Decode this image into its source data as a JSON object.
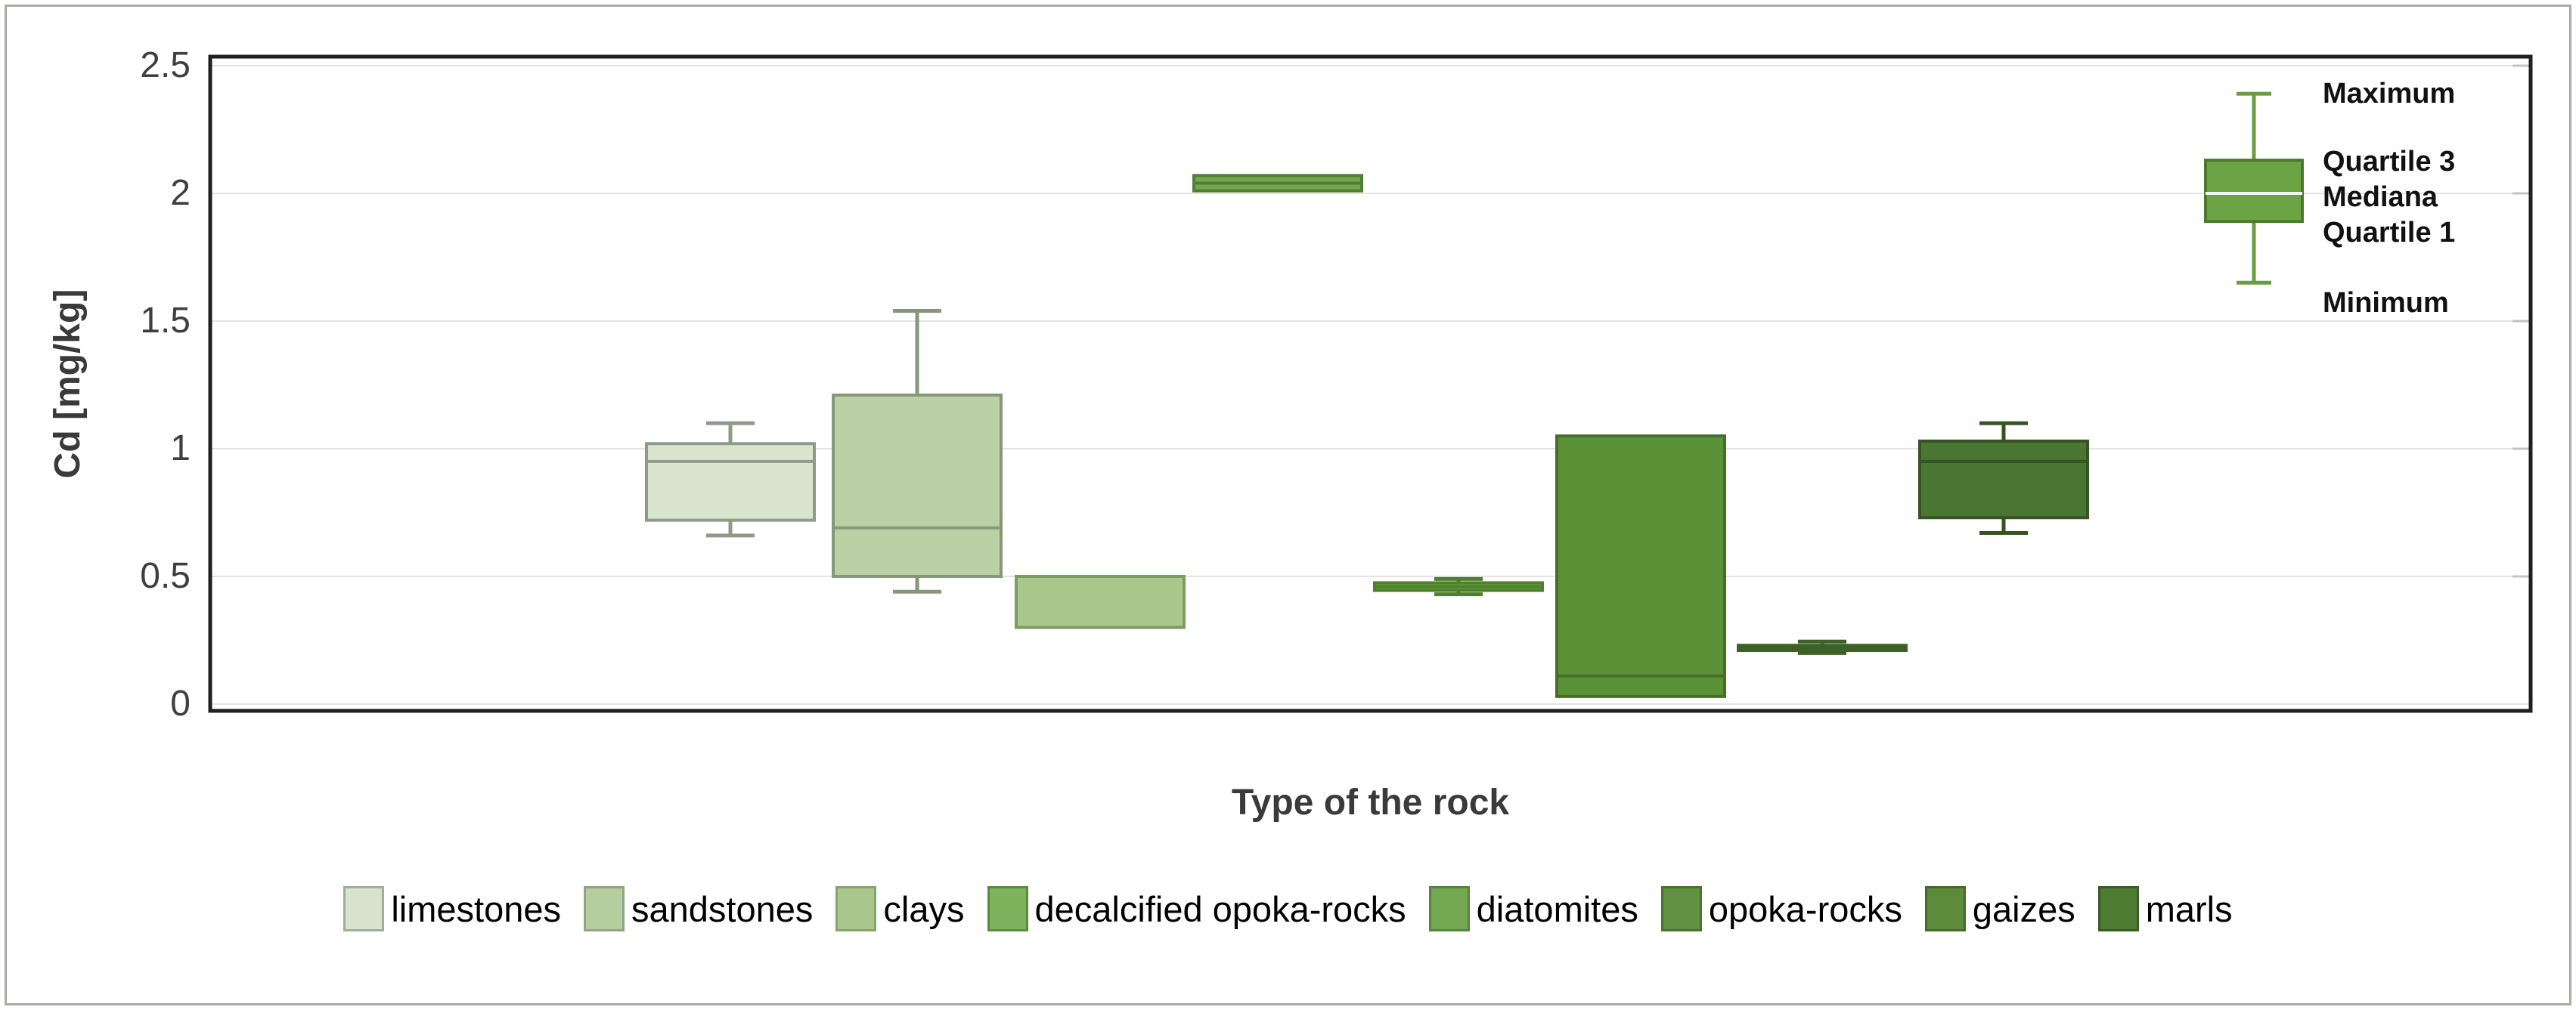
{
  "y_axis": {
    "title": "Cd [mg/kg]",
    "ticks": [
      {
        "label": "2.5",
        "value": 2.5
      },
      {
        "label": "2",
        "value": 2.0
      },
      {
        "label": "1.5",
        "value": 1.5
      },
      {
        "label": "1",
        "value": 1.0
      },
      {
        "label": "0.5",
        "value": 0.5
      },
      {
        "label": "0",
        "value": 0.0
      }
    ]
  },
  "x_axis": {
    "title": "Type of the rock"
  },
  "chart_data": {
    "type": "boxplot",
    "title": "",
    "xlabel": "Type of the rock",
    "ylabel": "Cd [mg/kg]",
    "ylim": [
      0,
      2.56
    ],
    "grid": "horizontal, every 0.5",
    "legend_position": "bottom",
    "categories": [
      "limestones",
      "sandstones",
      "clays",
      "decalcified opoka-rocks",
      "diatomites",
      "opoka-rocks",
      "gaizes",
      "marls"
    ],
    "series": [
      {
        "name": "limestones",
        "min": 0.66,
        "q1": 0.72,
        "median": 0.95,
        "q3": 1.02,
        "max": 1.1,
        "fill": "#d9e5ce",
        "stroke": "#8e9b88",
        "whisker": "#8e9b88",
        "median_color": "#8e9b88"
      },
      {
        "name": "sandstones",
        "min": 0.44,
        "q1": 0.5,
        "median": 0.69,
        "q3": 1.21,
        "max": 1.54,
        "fill": "#bbd1a5",
        "stroke": "#85997a",
        "whisker": "#85997a",
        "median_color": "#85997a"
      },
      {
        "name": "clays",
        "min": 0.3,
        "q1": 0.3,
        "median": 0.5,
        "q3": 0.5,
        "max": 0.5,
        "fill": "#a9c88c",
        "stroke": "#7c9c62",
        "whisker": "#7c9c62",
        "median_color": "#7c9c62"
      },
      {
        "name": "decalcified opoka-rocks",
        "min": 2.01,
        "q1": 2.01,
        "median": 2.04,
        "q3": 2.07,
        "max": 2.07,
        "fill": "#72a84e",
        "stroke": "#527e33",
        "whisker": "#527e33",
        "median_color": "#527e33"
      },
      {
        "name": "diatomites",
        "min": 0.43,
        "q1": 0.445,
        "median": 0.46,
        "q3": 0.475,
        "max": 0.49,
        "fill": "#67a33f",
        "stroke": "#4e802d",
        "whisker": "#4e802d",
        "median_color": "#4e802d"
      },
      {
        "name": "opoka-rocks",
        "min": 0.03,
        "q1": 0.03,
        "median": 0.11,
        "q3": 1.05,
        "max": 1.05,
        "fill": "#5c9237",
        "stroke": "#456f28",
        "whisker": "#456f28",
        "median_color": "#456f28"
      },
      {
        "name": "gaizes",
        "min": 0.2,
        "q1": 0.21,
        "median": 0.22,
        "q3": 0.23,
        "max": 0.245,
        "fill": "#507d31",
        "stroke": "#3d6126",
        "whisker": "#3d6126",
        "median_color": "#3d6126"
      },
      {
        "name": "marls",
        "min": 0.67,
        "q1": 0.73,
        "median": 0.95,
        "q3": 1.03,
        "max": 1.1,
        "fill": "#4b7532",
        "stroke": "#365421",
        "whisker": "#365421",
        "median_color": "#365421"
      }
    ],
    "example_boxplot": {
      "name": "legend example",
      "min": 1.65,
      "q1": 1.89,
      "median": 2.0,
      "q3": 2.13,
      "max": 2.39,
      "fill": "#6ca445",
      "stroke": "#4c7a2b",
      "whisker": "#6b9d3e",
      "median_color": "#f2f6ee",
      "labels": [
        {
          "text": "Maximum",
          "anchor_value": 2.39
        },
        {
          "text": "Quartile 3",
          "anchor_value": 2.125
        },
        {
          "text": "Mediana",
          "anchor_value": 1.985
        },
        {
          "text": "Quartile 1",
          "anchor_value": 1.845
        },
        {
          "text": "Minimum",
          "anchor_value": 1.571
        }
      ]
    }
  },
  "legend": {
    "items": [
      {
        "label": "limestones",
        "fill": "#d7e3cc",
        "border": "#a2ac9a"
      },
      {
        "label": "sandstones",
        "fill": "#b6cd9f",
        "border": "#92a484"
      },
      {
        "label": "clays",
        "fill": "#a9c78d",
        "border": "#87a46c"
      },
      {
        "label": "decalcified opoka-rocks",
        "fill": "#7eb25d",
        "border": "#5c8a3f"
      },
      {
        "label": "diatomites",
        "fill": "#73a750",
        "border": "#568440"
      },
      {
        "label": "opoka-rocks",
        "fill": "#619040",
        "border": "#4a7230"
      },
      {
        "label": "gaizes",
        "fill": "#5c8b3a",
        "border": "#456b2b"
      },
      {
        "label": "marls",
        "fill": "#4e7c33",
        "border": "#3a5c26"
      }
    ]
  },
  "colors": {
    "plot_border": "#1f1f1f",
    "gridline": "#e3e3e3",
    "right_tick": "#c3c3c3",
    "outer_frame": "#a9aca7",
    "background": "#ffffff"
  }
}
